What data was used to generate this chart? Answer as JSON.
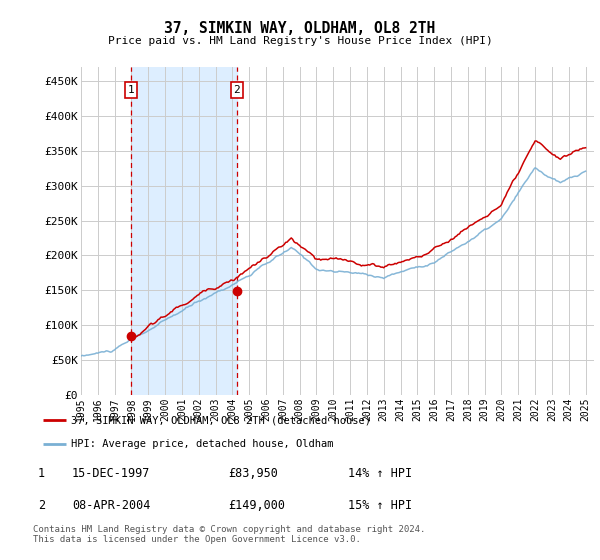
{
  "title": "37, SIMKIN WAY, OLDHAM, OL8 2TH",
  "subtitle": "Price paid vs. HM Land Registry's House Price Index (HPI)",
  "ylabel_ticks": [
    "£0",
    "£50K",
    "£100K",
    "£150K",
    "£200K",
    "£250K",
    "£300K",
    "£350K",
    "£400K",
    "£450K"
  ],
  "ytick_values": [
    0,
    50000,
    100000,
    150000,
    200000,
    250000,
    300000,
    350000,
    400000,
    450000
  ],
  "ylim": [
    0,
    470000
  ],
  "xlim_start": 1995.0,
  "xlim_end": 2025.5,
  "purchases": [
    {
      "date": 1997.96,
      "price": 83950,
      "label": "1"
    },
    {
      "date": 2004.27,
      "price": 149000,
      "label": "2"
    }
  ],
  "legend_entries": [
    {
      "label": "37, SIMKIN WAY, OLDHAM, OL8 2TH (detached house)",
      "color": "#cc0000",
      "lw": 2
    },
    {
      "label": "HPI: Average price, detached house, Oldham",
      "color": "#7ab0d4",
      "lw": 2
    }
  ],
  "table_rows": [
    {
      "num": "1",
      "date": "15-DEC-1997",
      "price": "£83,950",
      "hpi": "14% ↑ HPI"
    },
    {
      "num": "2",
      "date": "08-APR-2004",
      "price": "£149,000",
      "hpi": "15% ↑ HPI"
    }
  ],
  "footnote": "Contains HM Land Registry data © Crown copyright and database right 2024.\nThis data is licensed under the Open Government Licence v3.0.",
  "highlight_color": "#ddeeff",
  "vline_color": "#cc0000",
  "grid_color": "#cccccc",
  "background_color": "#ffffff",
  "hpi_line_color": "#7ab0d4",
  "price_line_color": "#cc0000",
  "hpi_seed": 10,
  "price_seed": 20
}
